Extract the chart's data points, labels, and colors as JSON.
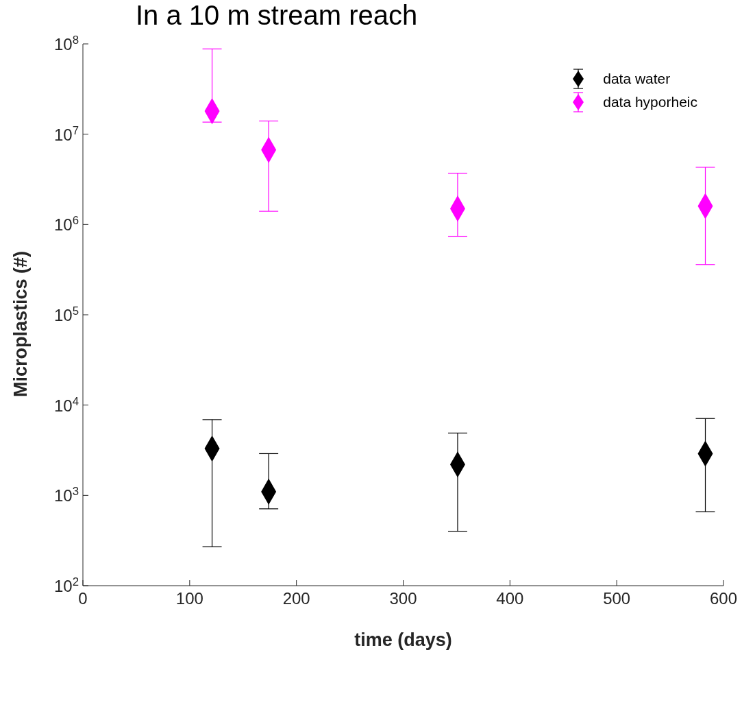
{
  "chart_data": {
    "type": "scatter",
    "title": "In a 10 m stream reach",
    "xlabel": "time (days)",
    "ylabel": "Microplastics (#)",
    "log": "y",
    "marker": "diamond",
    "legend": "top right",
    "grid": false,
    "xlim": [
      0,
      600
    ],
    "xticks": [
      0,
      100,
      200,
      300,
      400,
      500,
      600
    ],
    "ylim": [
      100,
      100000000
    ],
    "yticks": [
      {
        "value": 100,
        "label": "10$^{2}$"
      },
      {
        "value": 1000,
        "label": "10$^{3}$"
      },
      {
        "value": 10000,
        "label": "10$^{4}$"
      },
      {
        "value": 100000,
        "label": "10$^{5}$"
      },
      {
        "value": 1000000,
        "label": "10$^{6}$"
      },
      {
        "value": 10000000,
        "label": "10$^{7}$"
      },
      {
        "value": 100000000,
        "label": "10$^{8}$"
      }
    ],
    "series": [
      {
        "name": "data water",
        "color": "#000000",
        "x": [
          121,
          174,
          351,
          583
        ],
        "values": [
          3300,
          1100,
          2200,
          2900
        ],
        "errors": [
          [
            270,
            6900
          ],
          [
            710,
            2900
          ],
          [
            400,
            4900
          ],
          [
            660,
            7100
          ]
        ]
      },
      {
        "name": "data hyporheic",
        "color": "#ff00ff",
        "x": [
          121,
          174,
          351,
          583
        ],
        "values": [
          18000000,
          6700000,
          1500000,
          1600000
        ],
        "errors": [
          [
            13600000,
            88000000
          ],
          [
            1400000,
            14000000
          ],
          [
            740000,
            3700000
          ],
          [
            360000,
            4300000
          ]
        ]
      }
    ]
  }
}
